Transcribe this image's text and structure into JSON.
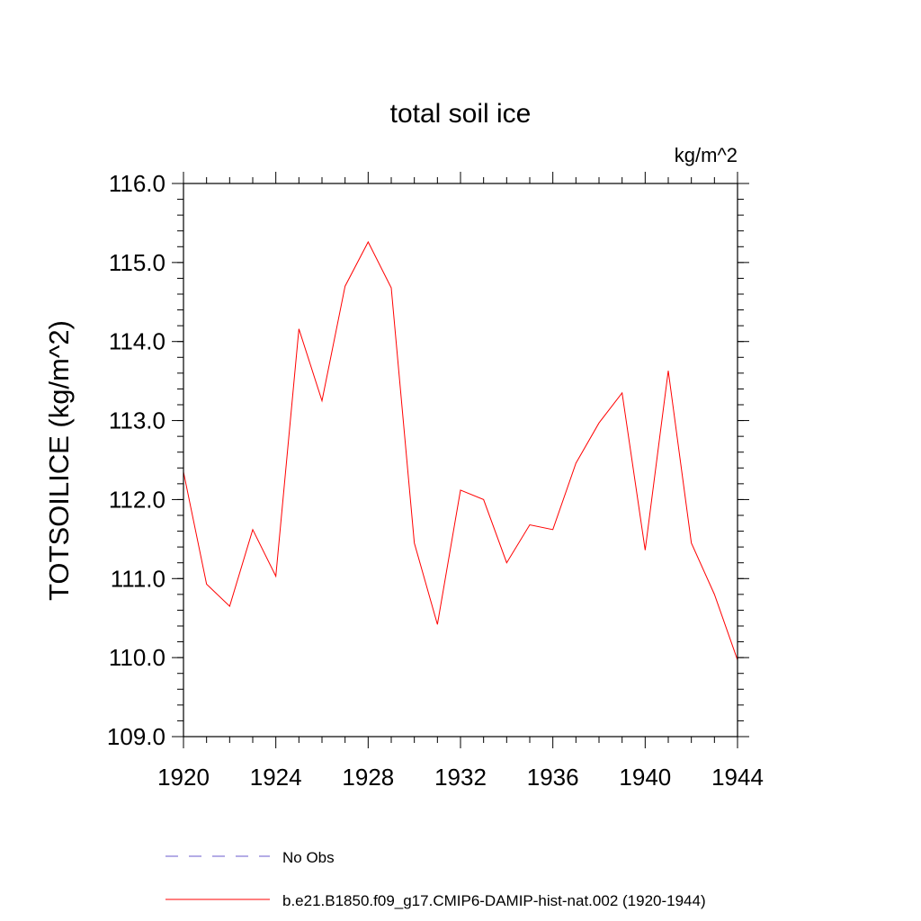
{
  "chart_data": {
    "type": "line",
    "title": "total soil ice",
    "units": "kg/m^2",
    "ylabel": "TOTSOILICE  (kg/m^2)",
    "xlabel": "",
    "xlim": [
      1920,
      1944
    ],
    "ylim": [
      109.0,
      116.0
    ],
    "x_ticks": [
      "1920",
      "1924",
      "1928",
      "1932",
      "1936",
      "1940",
      "1944"
    ],
    "y_ticks": [
      "109.0",
      "110.0",
      "111.0",
      "112.0",
      "113.0",
      "114.0",
      "115.0",
      "116.0"
    ],
    "grid": false,
    "legend_position": "bottom",
    "series": [
      {
        "name": "No Obs",
        "color": "#6a5acd",
        "style": "dashed",
        "x": [],
        "values": []
      },
      {
        "name": "b.e21.B1850.f09_g17.CMIP6-DAMIP-hist-nat.002 (1920-1944)",
        "color": "#ff0000",
        "style": "solid",
        "x": [
          1920,
          1921,
          1922,
          1923,
          1924,
          1925,
          1926,
          1927,
          1928,
          1929,
          1930,
          1931,
          1932,
          1933,
          1934,
          1935,
          1936,
          1937,
          1938,
          1939,
          1940,
          1941,
          1942,
          1943,
          1944
        ],
        "values": [
          112.35,
          110.93,
          110.65,
          111.62,
          111.03,
          114.16,
          113.25,
          114.7,
          115.26,
          114.68,
          111.45,
          110.42,
          112.12,
          112.0,
          111.2,
          111.68,
          111.62,
          112.46,
          112.97,
          113.35,
          111.36,
          113.63,
          111.45,
          110.8,
          109.97
        ]
      }
    ]
  }
}
